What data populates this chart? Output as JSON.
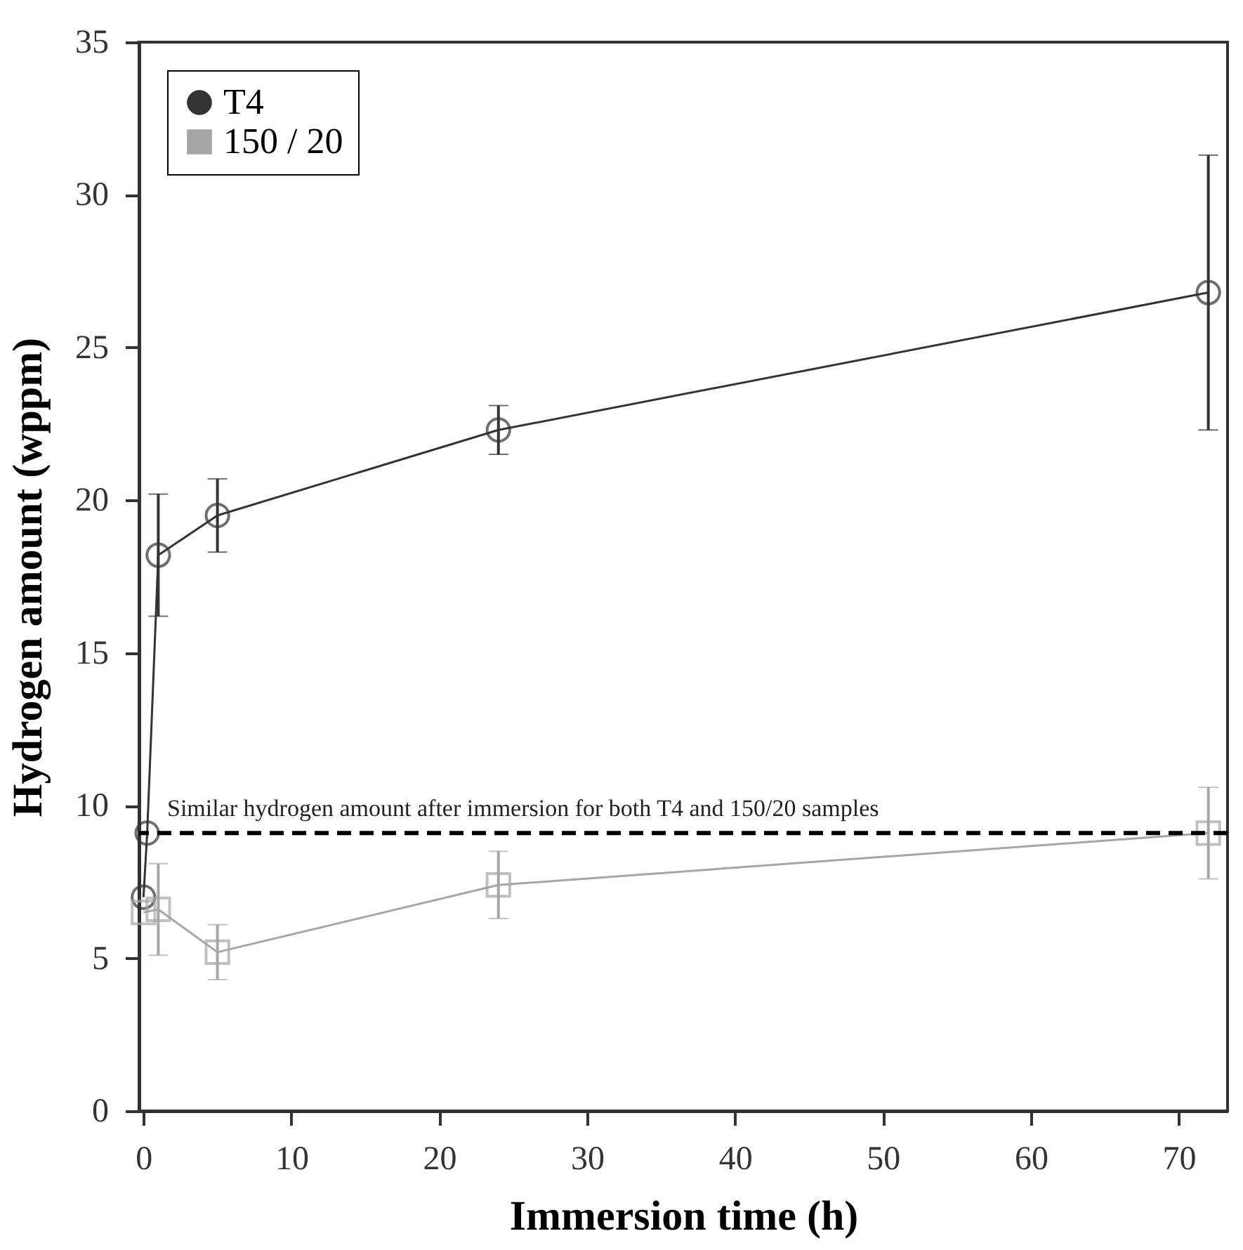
{
  "chart_data": {
    "type": "line",
    "xlabel": "Immersion time (h)",
    "ylabel": "Hydrogen amount (wppm)",
    "xlim": [
      -0.3,
      73.3
    ],
    "xticks": [
      0,
      10,
      20,
      30,
      40,
      50,
      60,
      70
    ],
    "ylim": [
      0,
      35
    ],
    "yticks": [
      0,
      5,
      10,
      15,
      20,
      25,
      30,
      35
    ],
    "grid": false,
    "legend": "top left",
    "series": [
      {
        "name": "T4",
        "color": "#333333",
        "marker": "circle",
        "x": [
          0,
          0.25,
          1,
          5,
          24,
          72
        ],
        "values": [
          7.0,
          9.1,
          18.2,
          19.5,
          22.3,
          26.8
        ],
        "errors": [
          null,
          null,
          2.0,
          1.2,
          0.8,
          4.5
        ]
      },
      {
        "name": "150 / 20",
        "color": "#a6a6a6",
        "marker": "square",
        "x": [
          0,
          1,
          5,
          24,
          72
        ],
        "values": [
          6.5,
          6.6,
          5.2,
          7.4,
          9.1
        ],
        "errors": [
          null,
          1.5,
          0.9,
          1.1,
          1.5
        ]
      }
    ],
    "ref_lines": [
      {
        "axis": "y",
        "value": 9.1,
        "label": "Similar hydrogen amount after immersion for both T4 and 150/20 samples",
        "color": "#000000",
        "line_style": "dashed"
      }
    ]
  }
}
